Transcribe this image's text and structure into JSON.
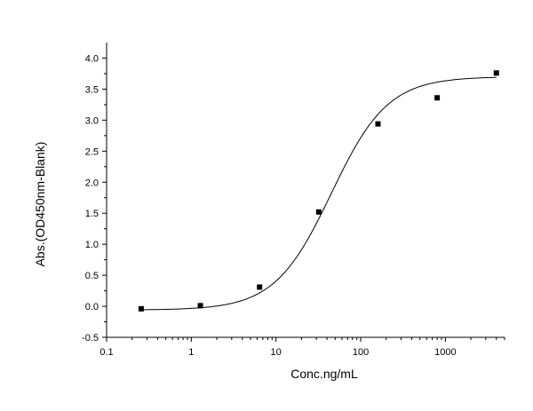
{
  "chart_data": {
    "type": "scatter",
    "xlabel": "Conc.ng/mL",
    "ylabel": "Abs.(OD450nm-Blank)",
    "x_scale": "log",
    "xlim": [
      0.1,
      5000
    ],
    "ylim": [
      -0.5,
      4.25
    ],
    "x_ticks": [
      0.1,
      1,
      10,
      100,
      1000
    ],
    "x_tick_labels": [
      "0.1",
      "1",
      "10",
      "100",
      "1000"
    ],
    "y_ticks": [
      -0.5,
      0.0,
      0.5,
      1.0,
      1.5,
      2.0,
      2.5,
      3.0,
      3.5,
      4.0
    ],
    "y_tick_labels": [
      "-0.5",
      "0.0",
      "0.5",
      "1.0",
      "1.5",
      "2.0",
      "2.5",
      "3.0",
      "3.5",
      "4.0"
    ],
    "grid": false,
    "series": [
      {
        "marker": "square",
        "color": "#000000",
        "points": [
          {
            "x": 0.256,
            "y": -0.04
          },
          {
            "x": 1.28,
            "y": 0.01
          },
          {
            "x": 6.4,
            "y": 0.31
          },
          {
            "x": 32,
            "y": 1.52
          },
          {
            "x": 160,
            "y": 2.94
          },
          {
            "x": 800,
            "y": 3.36
          },
          {
            "x": 4000,
            "y": 3.76
          }
        ]
      }
    ],
    "fit_curve": {
      "model": "4PL",
      "bottom": -0.06,
      "top": 3.7,
      "ec50": 45,
      "hill": 1.3,
      "x_range": [
        0.256,
        4000
      ],
      "color": "#000000"
    }
  }
}
